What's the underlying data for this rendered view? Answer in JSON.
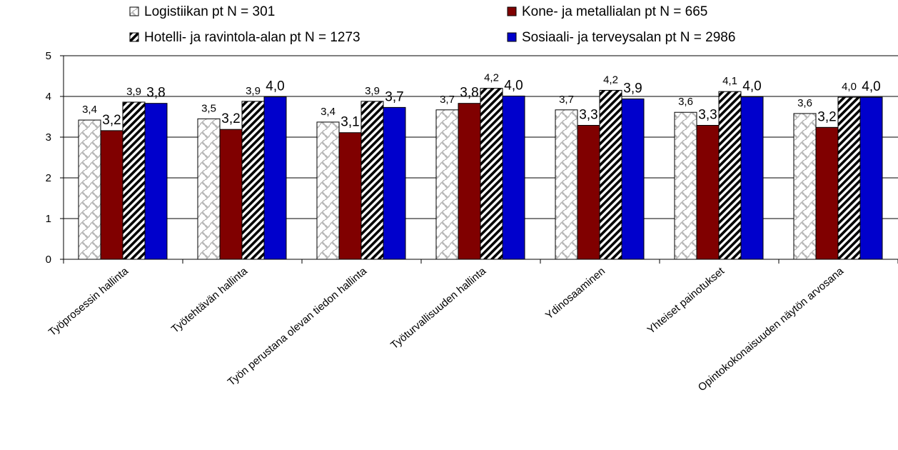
{
  "chart_data": {
    "type": "bar",
    "title": "",
    "xlabel": "",
    "ylabel": "",
    "ylim": [
      0,
      5
    ],
    "yticks": [
      0,
      1,
      2,
      3,
      4,
      5
    ],
    "grid": "horizontal",
    "legend_position": "top",
    "categories": [
      "Työprosessin hallinta",
      "Työtehtävän hallinta",
      "Työn perustana olevan tiedon hallinta",
      "Työturvallisuuden hallinta",
      "Ydinosaaminen",
      "Yhteiset painotukset",
      "Opintokokonaisuuden näytön arvosana"
    ],
    "series": [
      {
        "name": "Logistiikan pt N = 301",
        "pattern": "crosshatch-light",
        "color": "#c8c8c8",
        "values": [
          3.42,
          3.45,
          3.37,
          3.67,
          3.67,
          3.61,
          3.58
        ],
        "labels": [
          "3,4",
          "3,5",
          "3,4",
          "3,7",
          "3,7",
          "3,6",
          "3,6"
        ]
      },
      {
        "name": "Kone- ja metallialan pt N = 665",
        "pattern": "solid",
        "color": "#800000",
        "values": [
          3.16,
          3.19,
          3.11,
          3.83,
          3.29,
          3.29,
          3.24
        ],
        "labels": [
          "3,2",
          "3,2",
          "3,1",
          "3,8",
          "3,3",
          "3,3",
          "3,2"
        ]
      },
      {
        "name": "Hotelli- ja ravintola-alan pt N = 1273",
        "pattern": "diagonal-stripes",
        "color": "#000000",
        "values": [
          3.86,
          3.88,
          3.88,
          4.2,
          4.15,
          4.12,
          3.98
        ],
        "labels": [
          "3,9",
          "3,9",
          "3,9",
          "4,2",
          "4,2",
          "4,1",
          "4,0"
        ]
      },
      {
        "name": "Sosiaali- ja terveysalan pt N = 2986",
        "pattern": "solid",
        "color": "#0000cc",
        "values": [
          3.83,
          3.99,
          3.73,
          4.01,
          3.94,
          3.99,
          3.98
        ],
        "labels": [
          "3,8",
          "4,0",
          "3,7",
          "4,0",
          "3,9",
          "4,0",
          "4,0"
        ]
      }
    ]
  }
}
